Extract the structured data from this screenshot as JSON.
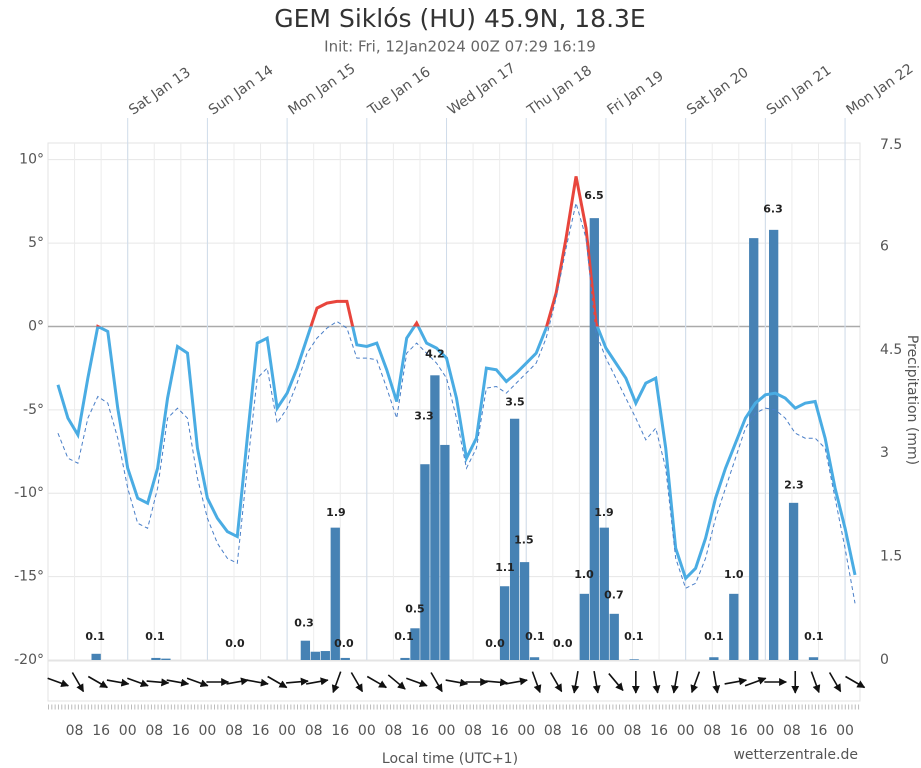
{
  "chart_data": {
    "type": "line",
    "title": "GEM Siklós (HU) 45.9N, 18.3E",
    "subtitle": "Init: Fri, 12Jan2024 00Z 07:29 16:19",
    "x_label": "Local time (UTC+1)",
    "y2_label": "Precipitation (mm)",
    "credit": "wetterzentrale.de",
    "xlim": [
      0,
      244.5
    ],
    "ylim": [
      -20,
      11
    ],
    "y2lim": [
      0,
      7.5
    ],
    "grid": true,
    "yticks": [
      {
        "value": 10,
        "label": "10°"
      },
      {
        "value": 5,
        "label": "5°"
      },
      {
        "value": 0,
        "label": "0°"
      },
      {
        "value": -5,
        "label": "-5°"
      },
      {
        "value": -10,
        "label": "-10°"
      },
      {
        "value": -15,
        "label": "-15°"
      },
      {
        "value": -20,
        "label": "-20°"
      }
    ],
    "y2ticks": [
      0,
      1.5,
      3,
      4.5,
      6,
      7.5
    ],
    "xticks": [
      {
        "value": 8,
        "label": "08"
      },
      {
        "value": 16,
        "label": "16"
      },
      {
        "value": 24,
        "label": "00"
      },
      {
        "value": 32,
        "label": "08"
      },
      {
        "value": 40,
        "label": "16"
      },
      {
        "value": 48,
        "label": "00"
      },
      {
        "value": 56,
        "label": "08"
      },
      {
        "value": 64,
        "label": "16"
      },
      {
        "value": 72,
        "label": "00"
      },
      {
        "value": 80,
        "label": "08"
      },
      {
        "value": 88,
        "label": "16"
      },
      {
        "value": 96,
        "label": "00"
      },
      {
        "value": 104,
        "label": "08"
      },
      {
        "value": 112,
        "label": "16"
      },
      {
        "value": 120,
        "label": "00"
      },
      {
        "value": 128,
        "label": "08"
      },
      {
        "value": 136,
        "label": "16"
      },
      {
        "value": 144,
        "label": "00"
      },
      {
        "value": 152,
        "label": "08"
      },
      {
        "value": 160,
        "label": "16"
      },
      {
        "value": 168,
        "label": "00"
      },
      {
        "value": 176,
        "label": "08"
      },
      {
        "value": 184,
        "label": "16"
      },
      {
        "value": 192,
        "label": "00"
      },
      {
        "value": 200,
        "label": "08"
      },
      {
        "value": 208,
        "label": "16"
      },
      {
        "value": 216,
        "label": "00"
      },
      {
        "value": 224,
        "label": "08"
      },
      {
        "value": 232,
        "label": "16"
      },
      {
        "value": 240,
        "label": "00"
      }
    ],
    "x2ticks": [
      {
        "value": 24,
        "label": "Sat Jan 13"
      },
      {
        "value": 48,
        "label": "Sun Jan 14"
      },
      {
        "value": 72,
        "label": "Mon Jan 15"
      },
      {
        "value": 96,
        "label": "Tue Jan 16"
      },
      {
        "value": 120,
        "label": "Wed Jan 17"
      },
      {
        "value": 144,
        "label": "Thu Jan 18"
      },
      {
        "value": 168,
        "label": "Fri Jan 19"
      },
      {
        "value": 192,
        "label": "Sat Jan 20"
      },
      {
        "value": 216,
        "label": "Sun Jan 21"
      },
      {
        "value": 240,
        "label": "Mon Jan 22"
      }
    ],
    "x": [
      3,
      6,
      9,
      12,
      15,
      18,
      21,
      24,
      27,
      30,
      33,
      36,
      39,
      42,
      45,
      48,
      51,
      54,
      57,
      60,
      63,
      66,
      69,
      72,
      75,
      78,
      81,
      84,
      87,
      90,
      93,
      96,
      99,
      102,
      105,
      108,
      111,
      114,
      117,
      120,
      123,
      126,
      129,
      132,
      135,
      138,
      141,
      144,
      147,
      150,
      153,
      156,
      159,
      162,
      165,
      168,
      171,
      174,
      177,
      180,
      183,
      186,
      189,
      192,
      195,
      198,
      201,
      204,
      207,
      210,
      213,
      216,
      219,
      222,
      225,
      228,
      231,
      234,
      237,
      240,
      243
    ],
    "series": [
      {
        "color": "#4aace3",
        "color_above_zero": "#e8453c",
        "values": [
          -3.5,
          -5.5,
          -6.5,
          -3.1,
          0,
          -0.3,
          -4.9,
          -8.5,
          -10.3,
          -10.6,
          -8.5,
          -4.3,
          -1.2,
          -1.6,
          -7.3,
          -10.3,
          -11.5,
          -12.3,
          -12.6,
          -6.7,
          -1.0,
          -0.7,
          -4.9,
          -4.0,
          -2.5,
          -0.7,
          1.1,
          1.4,
          1.5,
          1.5,
          -1.1,
          -1.2,
          -1.0,
          -2.6,
          -4.5,
          -0.7,
          0.2,
          -1.0,
          -1.3,
          -1.9,
          -4.3,
          -7.9,
          -6.7,
          -2.5,
          -2.6,
          -3.3,
          -2.8,
          -2.2,
          -1.6,
          -0.1,
          2.0,
          5.3,
          9.0,
          5.9,
          0.2,
          -1.3,
          -2.2,
          -3.1,
          -4.6,
          -3.4,
          -3.1,
          -7.3,
          -13.3,
          -15.1,
          -14.5,
          -12.7,
          -10.3,
          -8.5,
          -7.0,
          -5.5,
          -4.6,
          -4.1,
          -4.0,
          -4.3,
          -4.9,
          -4.6,
          -4.5,
          -6.7,
          -9.7,
          -12.1,
          -14.9
        ]
      },
      {
        "color": "#4a7fc8",
        "dashed": true,
        "values": [
          -6.4,
          -7.9,
          -8.2,
          -5.5,
          -4.2,
          -4.6,
          -6.7,
          -9.7,
          -11.8,
          -12.1,
          -9.7,
          -5.5,
          -4.9,
          -5.5,
          -9.1,
          -11.5,
          -13.0,
          -13.9,
          -14.2,
          -8.5,
          -3.1,
          -2.5,
          -5.8,
          -4.9,
          -3.4,
          -1.6,
          -0.7,
          -0.1,
          0.3,
          -0.1,
          -1.9,
          -1.9,
          -2.0,
          -3.7,
          -5.5,
          -1.6,
          -1.0,
          -1.6,
          -2.2,
          -3.1,
          -5.5,
          -8.5,
          -7.3,
          -3.7,
          -3.6,
          -4.0,
          -3.4,
          -2.8,
          -2.2,
          -0.7,
          1.7,
          4.7,
          7.4,
          5.3,
          -0.4,
          -1.9,
          -3.1,
          -4.3,
          -5.5,
          -6.8,
          -6.1,
          -8.5,
          -13.9,
          -15.7,
          -15.4,
          -13.9,
          -11.5,
          -9.7,
          -7.9,
          -6.1,
          -5.2,
          -4.9,
          -5.0,
          -5.5,
          -6.4,
          -6.7,
          -6.7,
          -7.3,
          -10.3,
          -13.3,
          -16.6
        ]
      },
      {
        "type": "bar",
        "axis": "y2",
        "color": "#4682b4",
        "x": [
          14.5,
          32.5,
          35.5,
          77.5,
          80.5,
          83.5,
          86.5,
          89.5,
          107.5,
          110.5,
          113.5,
          116.5,
          119.5,
          137.5,
          140.5,
          143.5,
          146.5,
          161.5,
          164.5,
          167.5,
          170.5,
          176.5,
          200.5,
          206.5,
          212.5,
          218.5,
          224.5,
          230.5
        ],
        "values": [
          0.09,
          0.03,
          0.02,
          0.28,
          0.12,
          0.13,
          1.92,
          0.03,
          0.03,
          0.46,
          2.84,
          4.13,
          3.12,
          1.07,
          3.5,
          1.42,
          0.04,
          0.96,
          6.41,
          1.92,
          0.67,
          0.01,
          0.04,
          0.96,
          6.12,
          6.24,
          2.28,
          0.04
        ]
      }
    ],
    "precip_totals": {
      "x": [
        14.2,
        32.2,
        56.3,
        77.1,
        86.7,
        89.1,
        107.2,
        110.5,
        113.2,
        116.5,
        134.6,
        137.6,
        140.6,
        143.3,
        146.6,
        155,
        161.4,
        164.4,
        167.4,
        170.4,
        176.4,
        200.5,
        206.5,
        218.3,
        224.6,
        230.6
      ],
      "values": [
        0.1,
        0.1,
        0,
        0.3,
        1.9,
        0,
        0.1,
        0.5,
        3.3,
        4.2,
        0,
        1.1,
        3.5,
        1.5,
        0.1,
        0,
        1.0,
        6.5,
        1.9,
        0.7,
        0.1,
        0.1,
        1.0,
        6.3,
        2.3,
        0.1
      ],
      "value_labels": [
        "0.1",
        "0.1",
        "0.0",
        "0.3",
        "1.9",
        "0.0",
        "0.1",
        "0.5",
        "3.3",
        "4.2",
        "0.0",
        "1.1",
        "3.5",
        "1.5",
        "0.1",
        "0.0",
        "1.0",
        "6.5",
        "1.9",
        "0.7",
        "0.1",
        "0.1",
        "1.0",
        "6.3",
        "2.3",
        "0.1"
      ]
    },
    "wind": {
      "x": [
        3,
        9,
        15,
        21,
        27,
        33,
        39,
        45,
        51,
        57,
        63,
        69,
        75,
        81,
        87,
        93,
        99,
        105,
        111,
        117,
        123,
        129,
        135,
        141,
        147,
        153,
        159,
        165,
        171,
        177,
        183,
        189,
        195,
        201,
        207,
        213,
        219,
        225,
        231,
        237,
        243
      ],
      "direction": [
        110,
        150,
        120,
        100,
        110,
        95,
        100,
        110,
        90,
        80,
        100,
        120,
        85,
        80,
        200,
        150,
        120,
        130,
        110,
        150,
        100,
        90,
        95,
        80,
        160,
        150,
        190,
        170,
        140,
        180,
        170,
        190,
        200,
        170,
        80,
        70,
        90,
        180,
        160,
        150,
        120
      ]
    }
  }
}
